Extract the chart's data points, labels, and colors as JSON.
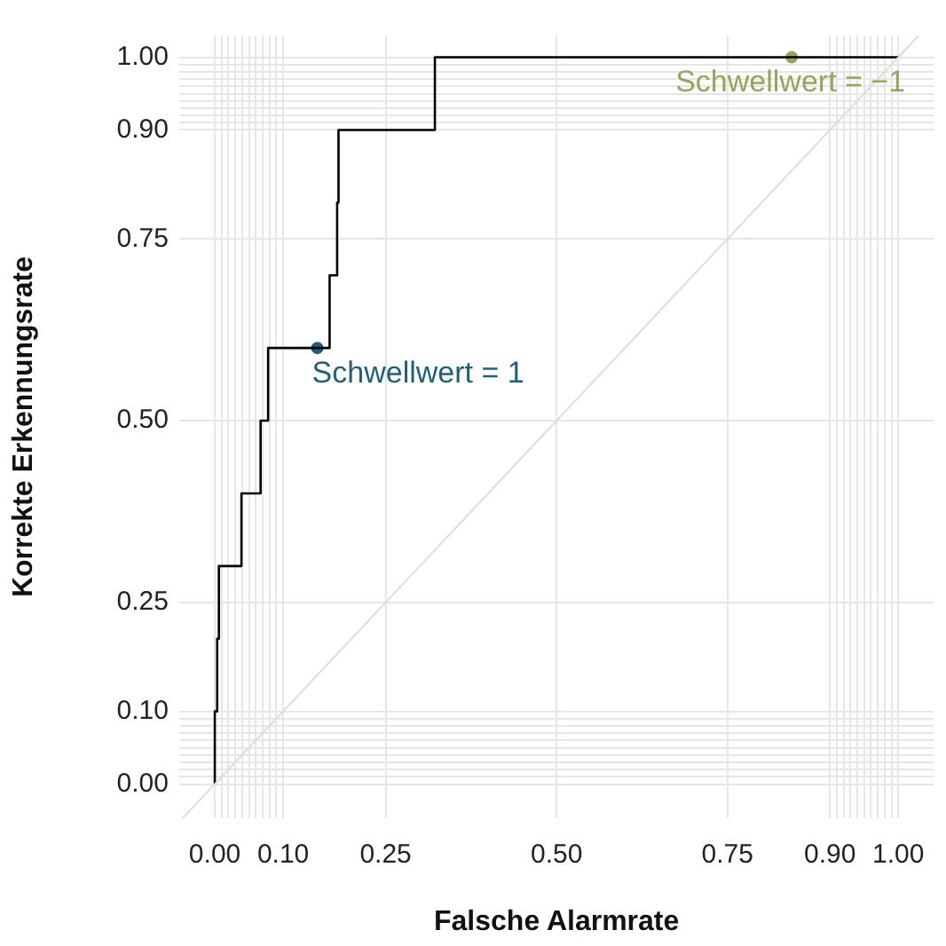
{
  "chart_data": {
    "type": "step",
    "xlabel": "Falsche Alarmrate",
    "ylabel": "Korrekte Erkennungsrate",
    "xlim": [
      -0.052,
      1.052
    ],
    "ylim": [
      -0.047,
      1.03
    ],
    "xticks": [
      {
        "value": 0,
        "label": "0.00"
      },
      {
        "value": 0.01,
        "label": null
      },
      {
        "value": 0.02,
        "label": null
      },
      {
        "value": 0.03,
        "label": null
      },
      {
        "value": 0.04,
        "label": null
      },
      {
        "value": 0.05,
        "label": null
      },
      {
        "value": 0.06,
        "label": null
      },
      {
        "value": 0.07,
        "label": null
      },
      {
        "value": 0.08,
        "label": null
      },
      {
        "value": 0.09,
        "label": null
      },
      {
        "value": 0.1,
        "label": "0.10"
      },
      {
        "value": 0.25,
        "label": "0.25"
      },
      {
        "value": 0.5,
        "label": "0.50"
      },
      {
        "value": 0.75,
        "label": "0.75"
      },
      {
        "value": 0.9,
        "label": "0.90"
      },
      {
        "value": 0.91,
        "label": null
      },
      {
        "value": 0.92,
        "label": null
      },
      {
        "value": 0.93,
        "label": null
      },
      {
        "value": 0.94,
        "label": null
      },
      {
        "value": 0.95,
        "label": null
      },
      {
        "value": 0.96,
        "label": null
      },
      {
        "value": 0.97,
        "label": null
      },
      {
        "value": 0.98,
        "label": null
      },
      {
        "value": 0.99,
        "label": null
      },
      {
        "value": 1,
        "label": "1.00"
      }
    ],
    "yticks": [
      {
        "value": 0,
        "label": "0.00"
      },
      {
        "value": 0.01,
        "label": null
      },
      {
        "value": 0.02,
        "label": null
      },
      {
        "value": 0.03,
        "label": null
      },
      {
        "value": 0.04,
        "label": null
      },
      {
        "value": 0.05,
        "label": null
      },
      {
        "value": 0.06,
        "label": null
      },
      {
        "value": 0.07,
        "label": null
      },
      {
        "value": 0.08,
        "label": null
      },
      {
        "value": 0.09,
        "label": null
      },
      {
        "value": 0.1,
        "label": "0.10"
      },
      {
        "value": 0.25,
        "label": "0.25"
      },
      {
        "value": 0.5,
        "label": "0.50"
      },
      {
        "value": 0.75,
        "label": "0.75"
      },
      {
        "value": 0.9,
        "label": "0.90"
      },
      {
        "value": 0.91,
        "label": null
      },
      {
        "value": 0.92,
        "label": null
      },
      {
        "value": 0.93,
        "label": null
      },
      {
        "value": 0.94,
        "label": null
      },
      {
        "value": 0.95,
        "label": null
      },
      {
        "value": 0.96,
        "label": null
      },
      {
        "value": 0.97,
        "label": null
      },
      {
        "value": 0.98,
        "label": null
      },
      {
        "value": 0.99,
        "label": null
      },
      {
        "value": 1,
        "label": "1.00"
      }
    ],
    "grid": true,
    "legend": false,
    "marker": "circle",
    "line_style": "solid",
    "series": [
      {
        "type": "line",
        "marker": "none",
        "color": "#dddddd",
        "x": [
          -0.047,
          1.03
        ],
        "values": [
          -0.047,
          1.03
        ]
      },
      {
        "marker": "none",
        "color": "#000000",
        "x": [
          0,
          0,
          0.0035,
          0.006,
          0.039,
          0.067,
          0.078,
          0.168,
          0.179,
          0.181,
          0.322,
          1
        ],
        "values": [
          0,
          0.1,
          0.2,
          0.3,
          0.4,
          0.5,
          0.6,
          0.7,
          0.8,
          0.9,
          1,
          1
        ]
      },
      {
        "type": "scatter",
        "color": "#1f5f7a",
        "x": [
          0.15
        ],
        "values": [
          0.6
        ]
      },
      {
        "type": "scatter",
        "color": "#9aa35e",
        "x": [
          0.844
        ],
        "values": [
          1
        ]
      }
    ],
    "annotations": [
      {
        "text": "Schwellwert = 1",
        "x": 0.15,
        "y": 0.6
      },
      {
        "text": "Schwellwert = −1",
        "x": 0.844,
        "y": 1
      }
    ]
  }
}
